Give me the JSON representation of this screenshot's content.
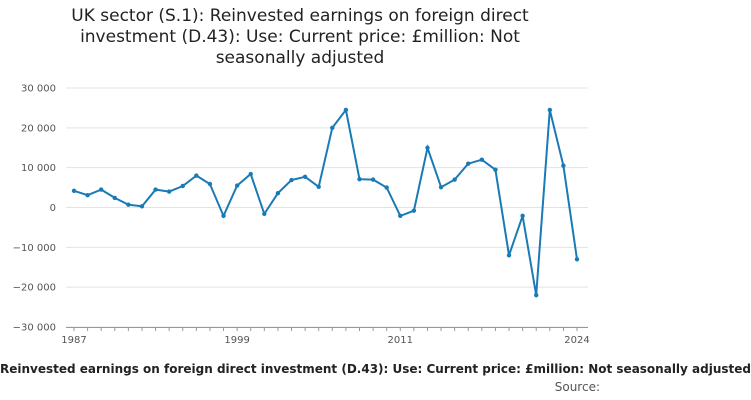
{
  "chart_data": {
    "type": "line",
    "title": "UK sector (S.1): Reinvested earnings on foreign direct investment (D.43): Use: Current price: £million: Not seasonally adjusted",
    "xlabel": "",
    "ylabel": "",
    "caption": "Reinvested earnings on foreign direct investment (D.43): Use: Current price: £million: Not seasonally adjusted",
    "source_label": "Source:",
    "x": [
      1987,
      1988,
      1989,
      1990,
      1991,
      1992,
      1993,
      1994,
      1995,
      1996,
      1997,
      1998,
      1999,
      2000,
      2001,
      2002,
      2003,
      2004,
      2005,
      2006,
      2007,
      2008,
      2009,
      2010,
      2011,
      2012,
      2013,
      2014,
      2015,
      2016,
      2017,
      2018,
      2019,
      2020,
      2021,
      2022,
      2023,
      2024
    ],
    "series": [
      {
        "values": [
          4200,
          3100,
          4500,
          2400,
          700,
          300,
          4500,
          4000,
          5400,
          8000,
          5900,
          -2100,
          5500,
          8400,
          -1600,
          3600,
          6900,
          7700,
          5200,
          20000,
          24500,
          7100,
          7000,
          5000,
          -2100,
          -800,
          15000,
          5100,
          7000,
          11000,
          12000,
          9500,
          -12000,
          -2100,
          -22000,
          24500,
          10500,
          -13000
        ]
      }
    ],
    "xticks": [
      "1987",
      "1999",
      "2011",
      "2024"
    ],
    "yticks": [
      -30000,
      -20000,
      -10000,
      0,
      10000,
      20000,
      30000
    ],
    "ytick_labels": [
      "−30 000",
      "−20 000",
      "−10 000",
      "0",
      "10 000",
      "20 000",
      "30 000"
    ],
    "xlim": [
      1987,
      2024
    ],
    "ylim": [
      -30000,
      30000
    ],
    "grid": true,
    "color": "#1a7ab5"
  }
}
